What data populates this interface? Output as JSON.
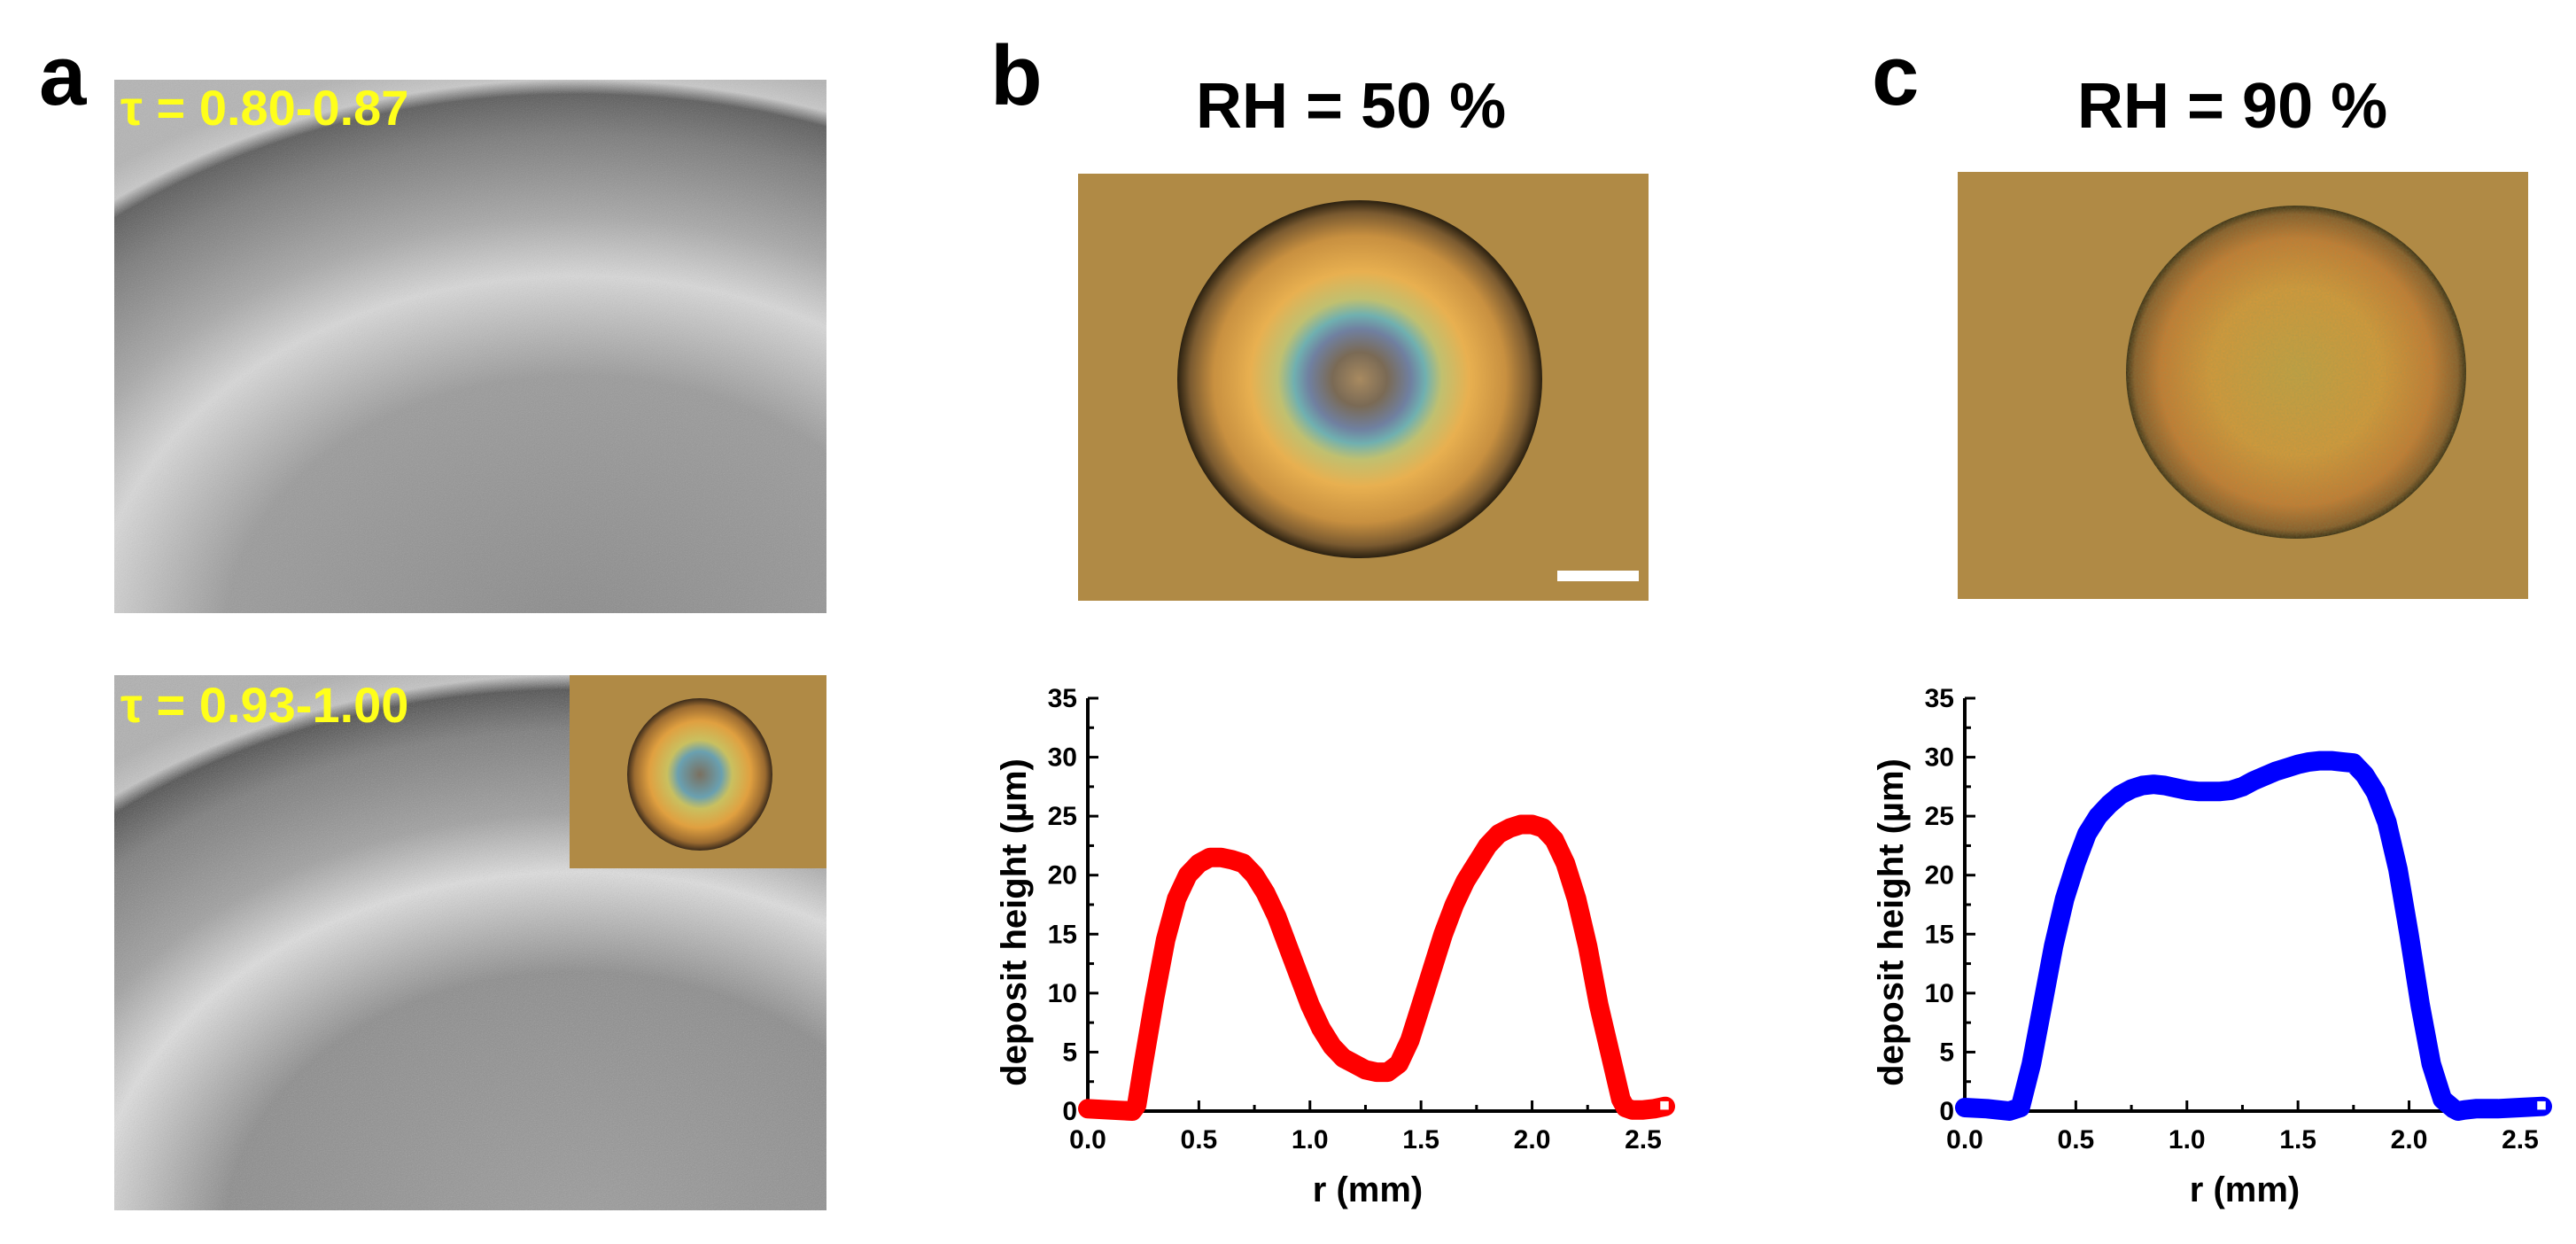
{
  "figure": {
    "panel_a": {
      "letter": "a",
      "top_image_label": "τ = 0.80-0.87",
      "bottom_image_label": "τ = 0.93-1.00"
    },
    "panel_b": {
      "letter": "b",
      "title": "RH = 50 %"
    },
    "panel_c": {
      "letter": "c",
      "title": "RH = 90 %"
    }
  },
  "colors": {
    "label_yellow": "#ffff1a",
    "photo_bg": "#b08a45",
    "series_red": "#ff0000",
    "series_blue": "#0000ff"
  },
  "chart_data": [
    {
      "type": "scatter",
      "title": "",
      "xlabel": "r  (mm)",
      "ylabel": "deposit height  (µm)",
      "xlim": [
        0,
        2.6
      ],
      "ylim": [
        0,
        35
      ],
      "xticks": [
        "0.0",
        "0.5",
        "1.0",
        "1.5",
        "2.0",
        "2.5"
      ],
      "yticks": [
        "0",
        "5",
        "10",
        "15",
        "20",
        "25",
        "30",
        "35"
      ],
      "series": [
        {
          "name": "RH = 50 %",
          "color": "#ff0000",
          "x": [
            0.0,
            0.1,
            0.2,
            0.22,
            0.25,
            0.3,
            0.35,
            0.4,
            0.45,
            0.5,
            0.55,
            0.6,
            0.65,
            0.7,
            0.75,
            0.8,
            0.85,
            0.9,
            0.95,
            1.0,
            1.05,
            1.1,
            1.15,
            1.2,
            1.25,
            1.3,
            1.35,
            1.4,
            1.45,
            1.5,
            1.55,
            1.6,
            1.65,
            1.7,
            1.75,
            1.8,
            1.85,
            1.9,
            1.95,
            2.0,
            2.05,
            2.1,
            2.15,
            2.2,
            2.25,
            2.3,
            2.35,
            2.4,
            2.42,
            2.45,
            2.5,
            2.55,
            2.6
          ],
          "y": [
            0.2,
            0.1,
            0.0,
            0.5,
            4,
            9.5,
            14.5,
            18,
            20,
            21,
            21.5,
            21.5,
            21.3,
            21,
            20,
            18.5,
            16.5,
            14,
            11.5,
            9,
            7,
            5.5,
            4.5,
            4,
            3.5,
            3.3,
            3.3,
            4,
            6,
            9,
            12,
            15,
            17.5,
            19.5,
            21,
            22.5,
            23.5,
            24,
            24.3,
            24.3,
            24,
            23,
            21,
            18,
            14,
            9,
            5,
            1,
            0.3,
            0.1,
            0.1,
            0.2,
            0.4
          ]
        }
      ]
    },
    {
      "type": "scatter",
      "title": "",
      "xlabel": "r  (mm)",
      "ylabel": "deposit height  (µm)",
      "xlim": [
        0,
        2.6
      ],
      "ylim": [
        0,
        35
      ],
      "xticks": [
        "0.0",
        "0.5",
        "1.0",
        "1.5",
        "2.0",
        "2.5"
      ],
      "yticks": [
        "0",
        "5",
        "10",
        "15",
        "20",
        "25",
        "30",
        "35"
      ],
      "series": [
        {
          "name": "RH = 90 %",
          "color": "#0000ff",
          "x": [
            0.0,
            0.1,
            0.2,
            0.25,
            0.3,
            0.35,
            0.4,
            0.45,
            0.5,
            0.55,
            0.6,
            0.65,
            0.7,
            0.75,
            0.8,
            0.85,
            0.9,
            0.95,
            1.0,
            1.05,
            1.1,
            1.15,
            1.2,
            1.25,
            1.3,
            1.35,
            1.4,
            1.45,
            1.5,
            1.55,
            1.6,
            1.65,
            1.7,
            1.75,
            1.8,
            1.85,
            1.9,
            1.95,
            2.0,
            2.05,
            2.1,
            2.15,
            2.2,
            2.22,
            2.25,
            2.3,
            2.4,
            2.5,
            2.6
          ],
          "y": [
            0.3,
            0.2,
            0.0,
            0.3,
            4,
            9,
            14,
            18,
            21,
            23.5,
            25,
            26,
            26.8,
            27.3,
            27.6,
            27.7,
            27.6,
            27.4,
            27.2,
            27.1,
            27.1,
            27.1,
            27.2,
            27.5,
            28,
            28.4,
            28.8,
            29.1,
            29.4,
            29.6,
            29.7,
            29.7,
            29.6,
            29.5,
            28.5,
            27,
            24.5,
            20.5,
            15,
            9,
            4,
            1,
            0.2,
            0.0,
            0.1,
            0.2,
            0.2,
            0.3,
            0.4
          ]
        }
      ]
    }
  ]
}
